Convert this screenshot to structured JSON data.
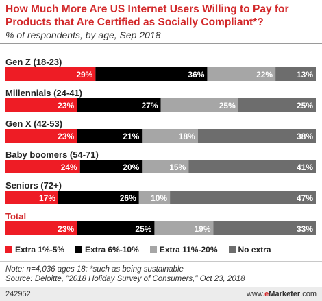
{
  "header": {
    "title": "How Much More Are US Internet Users Willing to Pay for Products that Are Certified as Socially Compliant*?",
    "subtitle": "% of respondents, by age, Sep 2018"
  },
  "colors": {
    "extra_1_5": "#ee1c25",
    "extra_6_10": "#000000",
    "extra_11_20": "#a6a6a6",
    "no_extra": "#6d6d6d",
    "title": "#d2282a",
    "total_label": "#d2282a"
  },
  "chart_data": {
    "type": "bar",
    "orientation": "horizontal",
    "stacked": true,
    "categories": [
      "Gen Z (18-23)",
      "Millennials (24-41)",
      "Gen X (42-53)",
      "Baby boomers (54-71)",
      "Seniors (72+)",
      "Total"
    ],
    "series": [
      {
        "name": "Extra 1%-5%",
        "values": [
          29,
          23,
          23,
          24,
          17,
          23
        ]
      },
      {
        "name": "Extra 6%-10%",
        "values": [
          36,
          27,
          21,
          20,
          26,
          25
        ]
      },
      {
        "name": "Extra 11%-20%",
        "values": [
          22,
          25,
          18,
          15,
          10,
          19
        ]
      },
      {
        "name": "No extra",
        "values": [
          13,
          25,
          38,
          41,
          47,
          33
        ]
      }
    ],
    "unit": "%",
    "xlim": [
      0,
      100
    ],
    "legend_position": "bottom",
    "grid": false
  },
  "legend": {
    "items": [
      "Extra 1%-5%",
      "Extra 6%-10%",
      "Extra 11%-20%",
      "No extra"
    ]
  },
  "notes": {
    "note": "Note: n=4,036 ages 18; *such as being sustainable",
    "source": "Source: Deloitte, \"2018 Holiday Survey of Consumers,\" Oct 23, 2018"
  },
  "footer": {
    "chart_id": "242952",
    "brand_prefix": "www.",
    "brand_accent": "e",
    "brand_name": "Marketer",
    "brand_suffix": ".com"
  }
}
